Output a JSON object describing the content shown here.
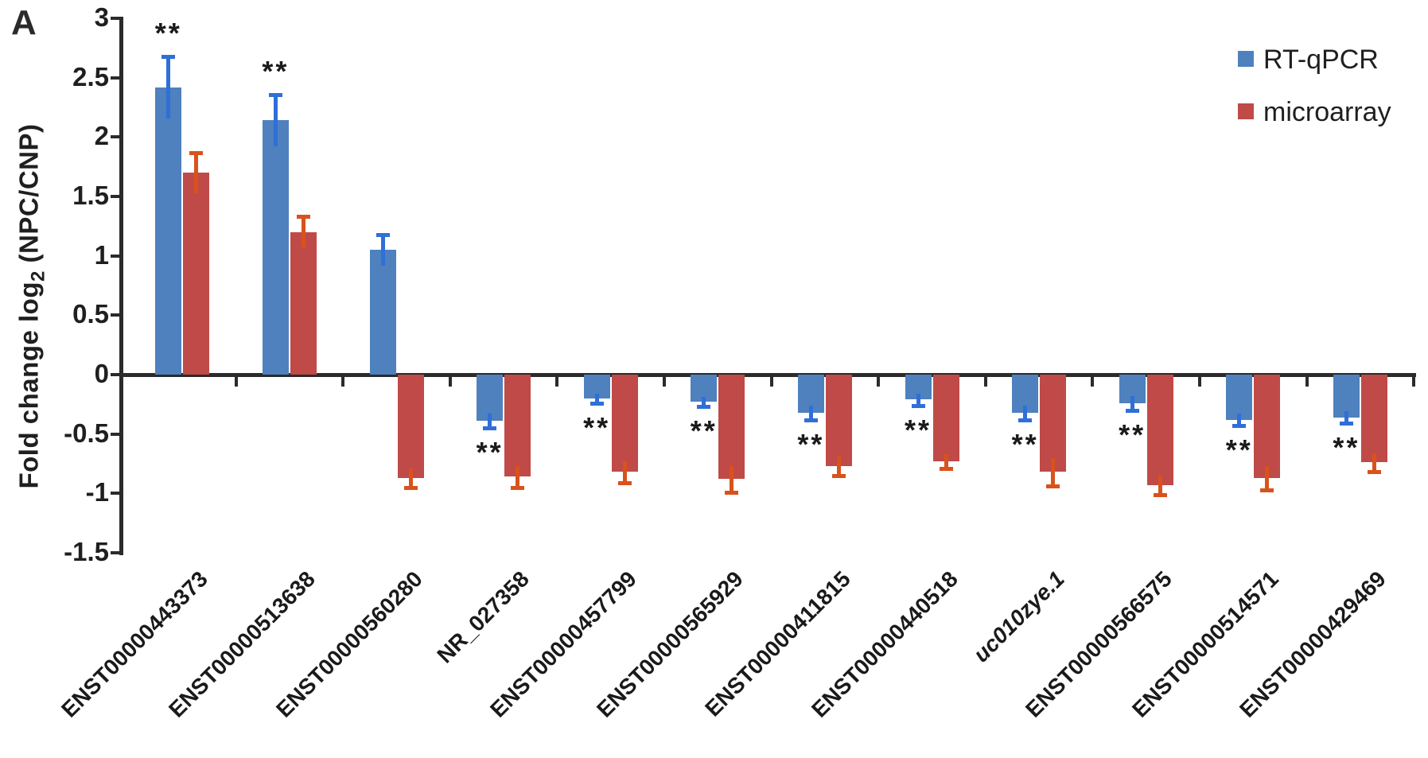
{
  "panel_label": "A",
  "y_axis": {
    "title_main": "Fold change log",
    "title_sub": "2",
    "title_rest": " (NPC/CNP)"
  },
  "legend": [
    {
      "label": "RT-qPCR",
      "color": "#4e81bd"
    },
    {
      "label": "microarray",
      "color": "#bf4a47"
    }
  ],
  "chart_data": {
    "type": "bar",
    "title": "",
    "xlabel": "",
    "ylabel": "Fold change log2 (NPC/CNP)",
    "ylim": [
      -1.5,
      3
    ],
    "y_ticks": [
      3,
      2.5,
      2,
      1.5,
      1,
      0.5,
      0,
      -0.5,
      -1,
      -1.5
    ],
    "grid": false,
    "legend_position": "top-right",
    "categories": [
      "ENST00000443373",
      "ENST00000513638",
      "ENST00000560280",
      "NR_027358",
      "ENST00000457799",
      "ENST00000565929",
      "ENST00000411815",
      "ENST00000440518",
      "uc010zye.1",
      "ENST00000566575",
      "ENST00000514571",
      "ENST00000429469"
    ],
    "italic_categories": [
      "uc010zye.1"
    ],
    "series": [
      {
        "name": "RT-qPCR",
        "color": "#4e81bd",
        "error_color": "#2f6fd8",
        "values": [
          2.42,
          2.14,
          1.05,
          -0.39,
          -0.2,
          -0.23,
          -0.32,
          -0.21,
          -0.32,
          -0.24,
          -0.38,
          -0.36
        ],
        "errors": [
          0.26,
          0.22,
          0.13,
          0.06,
          0.04,
          0.04,
          0.06,
          0.05,
          0.06,
          0.06,
          0.05,
          0.05
        ]
      },
      {
        "name": "microarray",
        "color": "#bf4a47",
        "error_color": "#d9521c",
        "values": [
          1.7,
          1.2,
          -0.87,
          -0.86,
          -0.82,
          -0.88,
          -0.77,
          -0.73,
          -0.82,
          -0.93,
          -0.87,
          -0.74
        ],
        "errors": [
          0.17,
          0.13,
          0.08,
          0.09,
          0.09,
          0.11,
          0.08,
          0.06,
          0.12,
          0.08,
          0.1,
          0.08
        ]
      }
    ],
    "significance": {
      "marker": "**",
      "on_series": "RT-qPCR",
      "flags": [
        true,
        true,
        false,
        true,
        true,
        true,
        true,
        true,
        true,
        true,
        true,
        true
      ]
    }
  }
}
